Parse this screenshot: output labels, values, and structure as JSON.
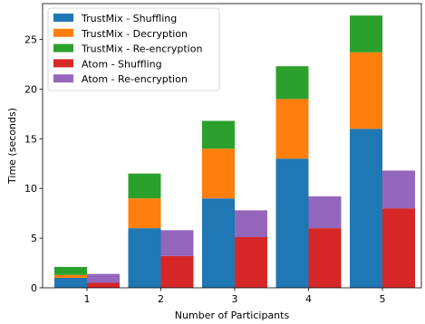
{
  "chart_data": {
    "type": "bar",
    "stacked": true,
    "grouped": true,
    "xlabel": "Number of Participants",
    "ylabel": "Time (seconds)",
    "ylim": [
      0,
      28.6
    ],
    "yticks": [
      0,
      5,
      10,
      15,
      20,
      25
    ],
    "categories": [
      "1",
      "2",
      "3",
      "4",
      "5"
    ],
    "grid": false,
    "legend_position": "top-left",
    "groups": [
      {
        "name": "TrustMix",
        "series": [
          {
            "name": "TrustMix - Shuffling",
            "color": "#1f77b4",
            "values": [
              1.0,
              6.0,
              9.0,
              13.0,
              16.0
            ]
          },
          {
            "name": "TrustMix - Decryption",
            "color": "#ff7f0e",
            "values": [
              0.3,
              3.0,
              5.0,
              6.0,
              7.7
            ]
          },
          {
            "name": "TrustMix - Re-encryption",
            "color": "#2ca02c",
            "values": [
              0.8,
              2.5,
              2.8,
              3.3,
              3.7
            ]
          }
        ]
      },
      {
        "name": "Atom",
        "series": [
          {
            "name": "Atom - Shuffling",
            "color": "#d62728",
            "values": [
              0.5,
              3.2,
              5.1,
              6.0,
              8.0
            ]
          },
          {
            "name": "Atom - Re-encryption",
            "color": "#9467bd",
            "values": [
              0.9,
              2.6,
              2.7,
              3.2,
              3.8
            ]
          }
        ]
      }
    ]
  }
}
